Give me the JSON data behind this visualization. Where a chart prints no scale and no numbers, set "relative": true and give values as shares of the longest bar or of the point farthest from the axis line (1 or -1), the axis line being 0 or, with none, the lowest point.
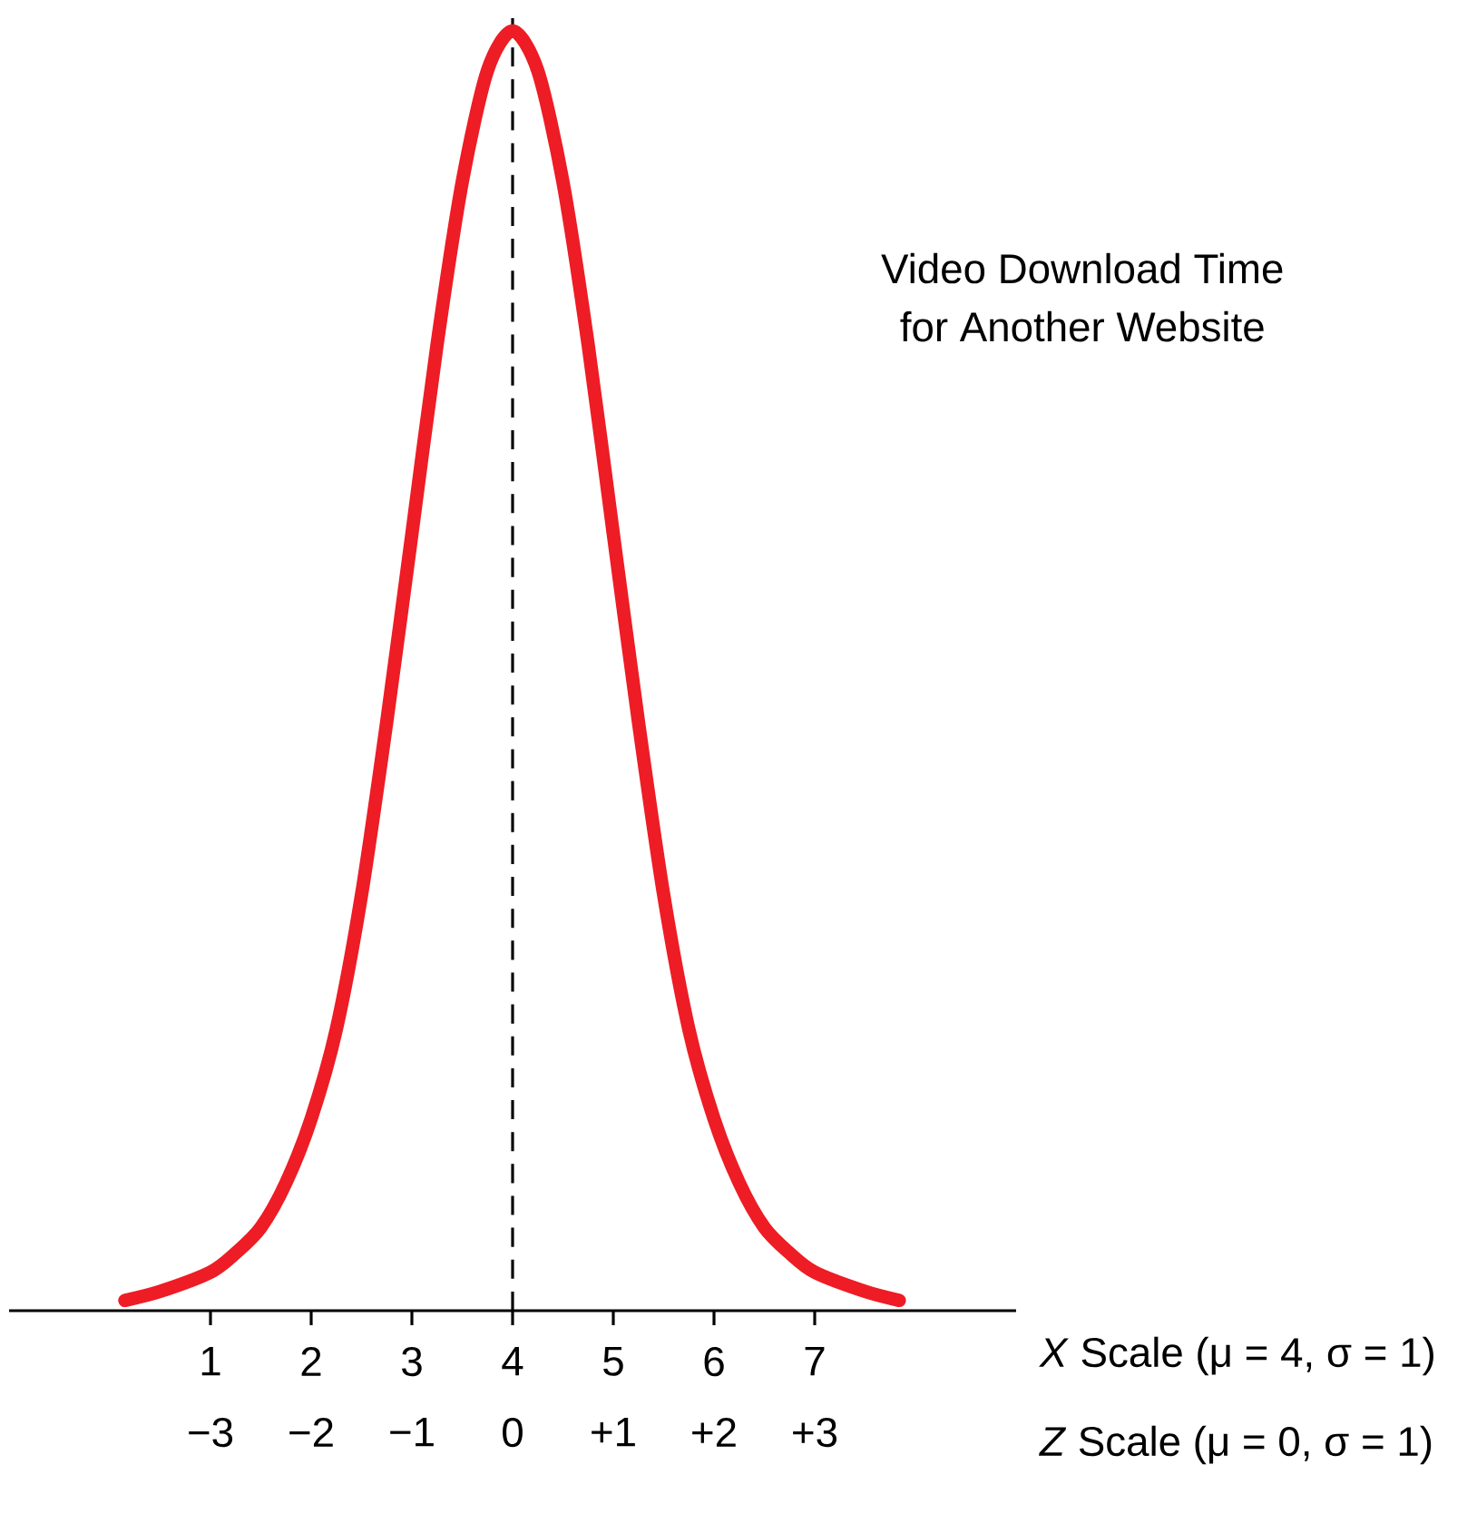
{
  "chart_data": {
    "type": "line",
    "relative": true,
    "annotations": [
      "Video Download Time",
      "for Another Website"
    ],
    "x": [
      0.15,
      0.5,
      1,
      1.25,
      1.5,
      1.75,
      2,
      2.25,
      2.5,
      2.75,
      3,
      3.25,
      3.5,
      3.75,
      4,
      4.25,
      4.5,
      4.75,
      5,
      5.25,
      5.5,
      5.75,
      6,
      6.25,
      6.5,
      6.75,
      7,
      7.5,
      7.84
    ],
    "series": [
      {
        "color": "#ee1c25",
        "line_style": "solid",
        "values": [
          0.008,
          0.015,
          0.03,
          0.045,
          0.065,
          0.1,
          0.15,
          0.22,
          0.325,
          0.46,
          0.607,
          0.755,
          0.882,
          0.969,
          1,
          0.969,
          0.882,
          0.755,
          0.607,
          0.46,
          0.325,
          0.22,
          0.15,
          0.1,
          0.065,
          0.045,
          0.03,
          0.015,
          0.008
        ]
      }
    ],
    "xlim": [
      -1,
      9
    ],
    "xticks": [
      1,
      2,
      3,
      4,
      5,
      6,
      7
    ],
    "xlabel": "*X* Scale (μ = 4, σ = 1)",
    "x2lim": [
      -5,
      5
    ],
    "x2ticks": [
      {
        "value": -3,
        "label": "−3"
      },
      {
        "value": -2,
        "label": "−2"
      },
      {
        "value": -1,
        "label": "−1"
      },
      0,
      {
        "value": 1,
        "label": "+1"
      },
      {
        "value": 2,
        "label": "+2"
      },
      {
        "value": 3,
        "label": "+3"
      }
    ],
    "x2label": "*Z* Scale (μ = 0, σ = 1)",
    "ref_lines": [
      {
        "axis": "x",
        "value": 4,
        "color": "#000000",
        "line_style": "dashed"
      }
    ],
    "grid": false
  }
}
